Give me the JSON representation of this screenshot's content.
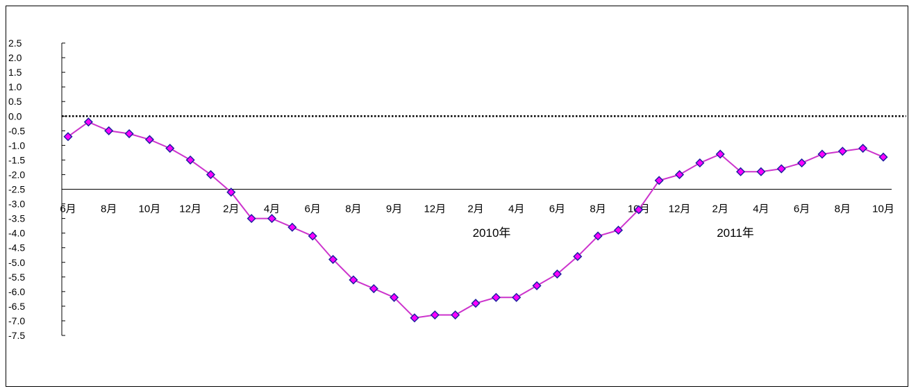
{
  "chart_data": {
    "type": "line",
    "title": "",
    "xlabel": "",
    "ylabel": "",
    "ylim": [
      -7.5,
      2.5
    ],
    "y_ticks": [
      "2.5",
      "2.0",
      "1.5",
      "1.0",
      "0.5",
      "0.0",
      "-0.5",
      "-1.0",
      "-1.5",
      "-2.0",
      "-2.5",
      "-3.0",
      "-3.5",
      "-4.0",
      "-4.5",
      "-5.0",
      "-5.5",
      "-6.0",
      "-6.5",
      "-7.0",
      "-7.5"
    ],
    "x_tick_labels": [
      "6月",
      "8月",
      "10月",
      "12月",
      "2月",
      "4月",
      "6月",
      "8月",
      "9月",
      "12月",
      "2月",
      "4月",
      "6月",
      "8月",
      "10月",
      "12月",
      "2月",
      "4月",
      "6月",
      "8月",
      "10月"
    ],
    "year_labels": [
      "2010年",
      "2011年"
    ],
    "grid": false,
    "reference_line": {
      "y": 0.0,
      "style": "dotted"
    },
    "series": [
      {
        "marker": "diamond",
        "line_color": "#cc33cc",
        "marker_fill": "#ff00ff",
        "marker_edge": "#1f1fa0",
        "values": [
          -0.7,
          -0.2,
          -0.5,
          -0.6,
          -0.8,
          -1.1,
          -1.5,
          -2.0,
          -2.6,
          -3.5,
          -3.5,
          -3.8,
          -4.1,
          -4.9,
          -5.6,
          -5.9,
          -6.2,
          -6.9,
          -6.8,
          -6.8,
          -6.4,
          -6.2,
          -6.2,
          -5.8,
          -5.4,
          -4.8,
          -4.1,
          -3.9,
          -3.2,
          -2.2,
          -2.0,
          -1.6,
          -1.3,
          -1.9,
          -1.9,
          -1.8,
          -1.6,
          -1.3,
          -1.2,
          -1.1,
          -1.4
        ]
      }
    ]
  }
}
